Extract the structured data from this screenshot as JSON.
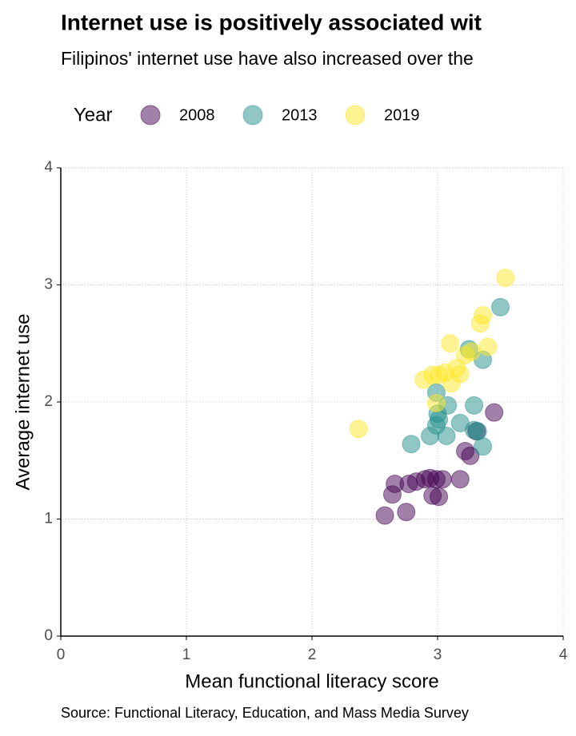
{
  "chart_data": {
    "type": "scatter",
    "title": "Internet use is positively associated wit",
    "subtitle": "Filipinos' internet use have also increased over the",
    "caption": "Source: Functional Literacy, Education, and Mass Media Survey",
    "x_label": "Mean functional literacy score",
    "y_label": "Average internet use",
    "legend_title": "Year",
    "legend_position": "top",
    "grid": true,
    "opacity": 0.5,
    "xlim": [
      0,
      4
    ],
    "xticks": [
      0,
      1,
      2,
      3,
      4
    ],
    "ylim": [
      0,
      4
    ],
    "yticks": [
      0,
      1,
      2,
      3,
      4
    ],
    "series": [
      {
        "name": "2008",
        "color": "#440154",
        "x": [
          2.58,
          2.75,
          2.64,
          2.66,
          2.77,
          2.83,
          2.9,
          2.94,
          2.96,
          3.01,
          2.99,
          3.04,
          3.18,
          3.22,
          3.26,
          3.31,
          3.45
        ],
        "values": [
          1.03,
          1.06,
          1.21,
          1.3,
          1.3,
          1.32,
          1.34,
          1.35,
          1.2,
          1.19,
          1.34,
          1.34,
          1.34,
          1.58,
          1.54,
          1.75,
          1.91
        ]
      },
      {
        "name": "2013",
        "color": "#21908C",
        "x": [
          2.79,
          2.94,
          2.99,
          3.01,
          3.07,
          3.08,
          2.99,
          3.0,
          3.18,
          3.29,
          3.29,
          3.32,
          3.36,
          3.25,
          3.36,
          3.5
        ],
        "values": [
          1.64,
          1.71,
          1.8,
          1.85,
          1.71,
          1.97,
          2.08,
          1.9,
          1.82,
          1.97,
          1.76,
          1.75,
          1.62,
          2.45,
          2.36,
          2.81
        ]
      },
      {
        "name": "2019",
        "color": "#FDE725",
        "x": [
          2.37,
          2.89,
          2.96,
          3.01,
          3.06,
          2.99,
          3.11,
          3.15,
          3.18,
          3.22,
          3.27,
          3.1,
          3.4,
          3.34,
          3.36,
          3.54
        ],
        "values": [
          1.77,
          2.19,
          2.23,
          2.23,
          2.25,
          1.99,
          2.16,
          2.29,
          2.24,
          2.4,
          2.43,
          2.5,
          2.47,
          2.67,
          2.74,
          3.06
        ]
      }
    ]
  }
}
